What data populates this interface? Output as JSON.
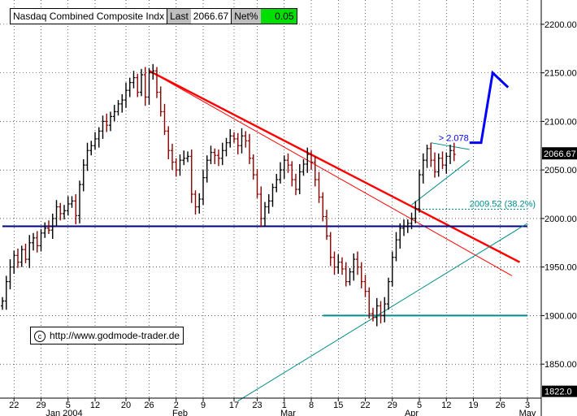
{
  "header": {
    "title": "Nasdaq Combined Composite Indx",
    "last_label": "Last",
    "last_value": "2066.67",
    "net_label": "Net%",
    "net_value": "0.05"
  },
  "watermark": "http://www.godmode-trader.de",
  "colors": {
    "up_bar": "#000000",
    "down_bar": "#8b0000",
    "downtrend": "#ff0000",
    "support": "#000080",
    "uptrend": "#008b8b",
    "projection": "#0000ff",
    "net_badge": "#00e000"
  },
  "chart_data": {
    "type": "candlestick",
    "y_range": [
      1815,
      2225
    ],
    "y_ticks": [
      "2200.00",
      "2150.00",
      "2100.00",
      "2050.00",
      "2000.00",
      "1950.00",
      "1900.00",
      "1850.00"
    ],
    "y_tick_values": [
      2200,
      2150,
      2100,
      2050,
      2000,
      1950,
      1900,
      1850
    ],
    "x_range_days": [
      -13,
      123
    ],
    "x_ticks": [
      {
        "label": "22",
        "day": -10
      },
      {
        "label": "29",
        "day": -3
      },
      {
        "label": "5",
        "day": 4
      },
      {
        "label": "12",
        "day": 11
      },
      {
        "label": "20",
        "day": 19
      },
      {
        "label": "26",
        "day": 25
      },
      {
        "label": "2",
        "day": 32
      },
      {
        "label": "9",
        "day": 39
      },
      {
        "label": "17",
        "day": 47
      },
      {
        "label": "23",
        "day": 53
      },
      {
        "label": "1",
        "day": 60
      },
      {
        "label": "8",
        "day": 67
      },
      {
        "label": "15",
        "day": 74
      },
      {
        "label": "22",
        "day": 81
      },
      {
        "label": "29",
        "day": 88
      },
      {
        "label": "5",
        "day": 95
      },
      {
        "label": "12",
        "day": 102
      },
      {
        "label": "19",
        "day": 109
      },
      {
        "label": "26",
        "day": 116
      },
      {
        "label": "3",
        "day": 123
      }
    ],
    "month_labels": [
      {
        "label": "Jan 2004",
        "day": 3
      },
      {
        "label": "Feb",
        "day": 33
      },
      {
        "label": "Mar",
        "day": 61
      },
      {
        "label": "Apr",
        "day": 93
      },
      {
        "label": "May",
        "day": 123
      }
    ],
    "closes": [
      [
        -13,
        1915
      ],
      [
        -12,
        1935
      ],
      [
        -11,
        1950
      ],
      [
        -10,
        1962
      ],
      [
        -9,
        1955
      ],
      [
        -8,
        1968
      ],
      [
        -7,
        1958
      ],
      [
        -6,
        1975
      ],
      [
        -5,
        1980
      ],
      [
        -4,
        1972
      ],
      [
        -3,
        1985
      ],
      [
        -2,
        1990
      ],
      [
        -1,
        1988
      ],
      [
        0,
        2000
      ],
      [
        1,
        2012
      ],
      [
        2,
        2005
      ],
      [
        3,
        2008
      ],
      [
        4,
        2015
      ],
      [
        5,
        2018
      ],
      [
        6,
        2003
      ],
      [
        7,
        2035
      ],
      [
        8,
        2055
      ],
      [
        9,
        2070
      ],
      [
        10,
        2075
      ],
      [
        11,
        2082
      ],
      [
        12,
        2090
      ],
      [
        13,
        2100
      ],
      [
        14,
        2096
      ],
      [
        15,
        2105
      ],
      [
        16,
        2110
      ],
      [
        17,
        2118
      ],
      [
        18,
        2122
      ],
      [
        19,
        2132
      ],
      [
        20,
        2140
      ],
      [
        21,
        2145
      ],
      [
        22,
        2130
      ],
      [
        23,
        2148
      ],
      [
        24,
        2125
      ],
      [
        25,
        2150
      ],
      [
        26,
        2152
      ],
      [
        27,
        2130
      ],
      [
        28,
        2110
      ],
      [
        29,
        2090
      ],
      [
        30,
        2070
      ],
      [
        31,
        2058
      ],
      [
        32,
        2050
      ],
      [
        33,
        2060
      ],
      [
        34,
        2062
      ],
      [
        35,
        2064
      ],
      [
        36,
        2025
      ],
      [
        37,
        2012
      ],
      [
        38,
        2020
      ],
      [
        39,
        2042
      ],
      [
        40,
        2060
      ],
      [
        41,
        2068
      ],
      [
        42,
        2065
      ],
      [
        43,
        2062
      ],
      [
        44,
        2070
      ],
      [
        45,
        2078
      ],
      [
        46,
        2085
      ],
      [
        47,
        2082
      ],
      [
        48,
        2075
      ],
      [
        49,
        2085
      ],
      [
        50,
        2080
      ],
      [
        51,
        2062
      ],
      [
        52,
        2045
      ],
      [
        53,
        2025
      ],
      [
        54,
        2000
      ],
      [
        55,
        2012
      ],
      [
        56,
        2018
      ],
      [
        57,
        2032
      ],
      [
        58,
        2040
      ],
      [
        59,
        2050
      ],
      [
        60,
        2060
      ],
      [
        61,
        2055
      ],
      [
        62,
        2040
      ],
      [
        63,
        2030
      ],
      [
        64,
        2048
      ],
      [
        65,
        2056
      ],
      [
        66,
        2066
      ],
      [
        67,
        2058
      ],
      [
        68,
        2040
      ],
      [
        69,
        2022
      ],
      [
        70,
        2002
      ],
      [
        71,
        1982
      ],
      [
        72,
        1960
      ],
      [
        73,
        1950
      ],
      [
        74,
        1955
      ],
      [
        75,
        1948
      ],
      [
        76,
        1935
      ],
      [
        77,
        1945
      ],
      [
        78,
        1958
      ],
      [
        79,
        1950
      ],
      [
        80,
        1935
      ],
      [
        81,
        1925
      ],
      [
        82,
        1902
      ],
      [
        83,
        1898
      ],
      [
        84,
        1910
      ],
      [
        85,
        1900
      ],
      [
        86,
        1912
      ],
      [
        87,
        1935
      ],
      [
        88,
        1960
      ],
      [
        89,
        1978
      ],
      [
        90,
        1990
      ],
      [
        91,
        1992
      ],
      [
        92,
        1995
      ],
      [
        93,
        2000
      ],
      [
        94,
        2010
      ],
      [
        95,
        2045
      ],
      [
        96,
        2060
      ],
      [
        97,
        2072
      ],
      [
        98,
        2060
      ],
      [
        99,
        2048
      ],
      [
        100,
        2062
      ],
      [
        101,
        2055
      ],
      [
        102,
        2064
      ],
      [
        103,
        2070
      ],
      [
        104,
        2066
      ]
    ],
    "lines": [
      {
        "name": "downtrend-thick",
        "role": "downtrend",
        "width": 2.4,
        "points": [
          [
            25,
            2152
          ],
          [
            121,
            1955
          ]
        ]
      },
      {
        "name": "downtrend-thin",
        "role": "downtrend",
        "width": 1,
        "points": [
          [
            25,
            2152
          ],
          [
            119,
            1941
          ]
        ]
      },
      {
        "name": "support-2000",
        "role": "support",
        "width": 2,
        "points": [
          [
            -13,
            1992
          ],
          [
            123,
            1992
          ]
        ]
      },
      {
        "name": "support-1900",
        "role": "uptrend",
        "width": 2,
        "points": [
          [
            70,
            1900
          ],
          [
            123,
            1900
          ]
        ]
      },
      {
        "name": "uptrend-long",
        "role": "uptrend",
        "width": 1,
        "points": [
          [
            48,
            1812
          ],
          [
            123,
            1995
          ]
        ]
      },
      {
        "name": "wedge-lower",
        "role": "uptrend",
        "width": 1,
        "points": [
          [
            93,
            2014
          ],
          [
            108,
            2060
          ]
        ]
      },
      {
        "name": "wedge-upper",
        "role": "uptrend",
        "width": 1,
        "points": [
          [
            98,
            2078
          ],
          [
            108,
            2071
          ]
        ]
      }
    ],
    "projection": [
      [
        108,
        2078
      ],
      [
        111,
        2078
      ],
      [
        114,
        2150
      ],
      [
        118,
        2135
      ]
    ],
    "target_level": [
      2009.52,
      [
        95,
        123
      ]
    ],
    "annotations": [
      {
        "text": "> 2.078",
        "day": 100,
        "value": 2080
      },
      {
        "text": "2009.52 (38.2%)",
        "day": 108,
        "value": 2012
      }
    ],
    "last_price_label": "2066.67",
    "last_price": 2066.67,
    "bottom_price_label": "1822.0",
    "bottom_price": 1822
  }
}
